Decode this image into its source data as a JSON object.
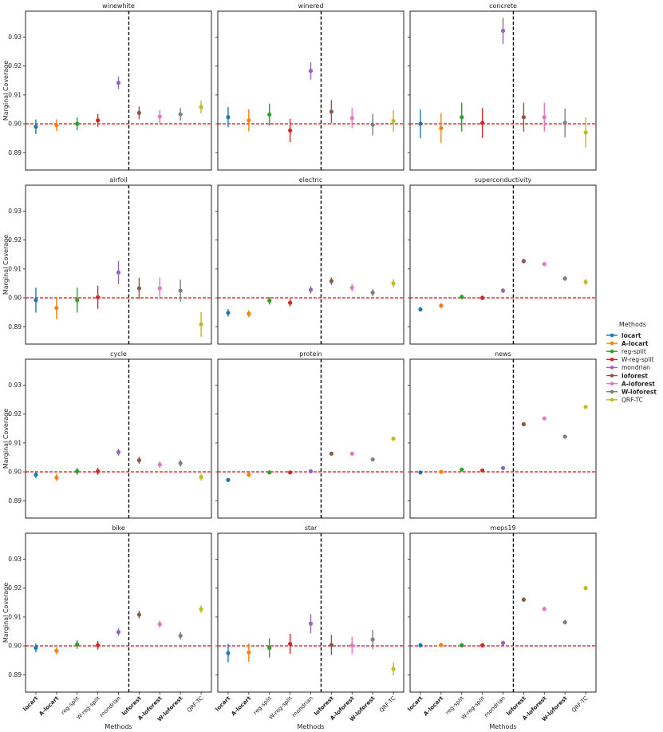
{
  "chart_data": {
    "type": "scatter",
    "subtype": "point-with-error-bars",
    "ylabel": "Marginal Coverage",
    "xlabel": "Methods",
    "ylim": [
      0.884,
      0.939
    ],
    "yticks": [
      0.89,
      0.9,
      0.91,
      0.92,
      0.93
    ],
    "ytick_labels": [
      "0.89",
      "0.90",
      "0.91",
      "0.92",
      "0.93"
    ],
    "reference_line": 0.9,
    "divider_between": [
      "mondrian",
      "loforest"
    ],
    "legend": {
      "title": "Methods",
      "placement": "right"
    },
    "methods": [
      {
        "name": "locart",
        "bold": true,
        "color": "#1f77b4"
      },
      {
        "name": "A-locart",
        "bold": true,
        "color": "#ff7f0e"
      },
      {
        "name": "reg-split",
        "bold": false,
        "color": "#2ca02c"
      },
      {
        "name": "W-reg-split",
        "bold": false,
        "color": "#d62728"
      },
      {
        "name": "mondrian",
        "bold": false,
        "color": "#9467bd"
      },
      {
        "name": "loforest",
        "bold": true,
        "color": "#8c564b"
      },
      {
        "name": "A-loforest",
        "bold": true,
        "color": "#e377c2"
      },
      {
        "name": "W-loforest",
        "bold": true,
        "color": "#7f7f7f"
      },
      {
        "name": "QRF-TC",
        "bold": false,
        "color": "#bcbd22"
      }
    ],
    "panels": [
      {
        "title": "winewhite",
        "means": [
          0.899,
          0.8995,
          0.9,
          0.9012,
          0.9142,
          0.9038,
          0.9025,
          0.9033,
          0.9058
        ],
        "errors": [
          0.0025,
          0.002,
          0.0022,
          0.0022,
          0.0022,
          0.0022,
          0.0022,
          0.0022,
          0.0022
        ]
      },
      {
        "title": "winered",
        "means": [
          0.9023,
          0.9012,
          0.9032,
          0.8977,
          0.9183,
          0.9042,
          0.902,
          0.8997,
          0.901
        ],
        "errors": [
          0.0035,
          0.0038,
          0.0038,
          0.004,
          0.003,
          0.004,
          0.0035,
          0.0037,
          0.0038
        ]
      },
      {
        "title": "concrete",
        "means": [
          0.9,
          0.8985,
          0.9023,
          0.9003,
          0.9322,
          0.9023,
          0.9023,
          0.9003,
          0.897
        ],
        "errors": [
          0.005,
          0.0052,
          0.005,
          0.0052,
          0.0045,
          0.005,
          0.005,
          0.005,
          0.0052
        ]
      },
      {
        "title": "airfoil",
        "means": [
          0.8992,
          0.8965,
          0.8992,
          0.9002,
          0.9088,
          0.9033,
          0.9033,
          0.9025,
          0.8908
        ],
        "errors": [
          0.0043,
          0.0038,
          0.0043,
          0.004,
          0.004,
          0.0037,
          0.0038,
          0.0038,
          0.0043
        ]
      },
      {
        "title": "electric",
        "means": [
          0.8948,
          0.8945,
          0.899,
          0.8983,
          0.9028,
          0.9058,
          0.9035,
          0.9018,
          0.905
        ],
        "errors": [
          0.0013,
          0.0012,
          0.0013,
          0.0013,
          0.0013,
          0.0013,
          0.0013,
          0.0013,
          0.0015
        ]
      },
      {
        "title": "superconductivity",
        "means": [
          0.896,
          0.8973,
          0.9003,
          0.9,
          0.9025,
          0.9127,
          0.9117,
          0.9067,
          0.9055
        ],
        "errors": [
          0.0008,
          0.0008,
          0.0008,
          0.0008,
          0.0008,
          0.0008,
          0.0008,
          0.0008,
          0.001
        ]
      },
      {
        "title": "cycle",
        "means": [
          0.899,
          0.898,
          0.9002,
          0.9002,
          0.9068,
          0.904,
          0.9025,
          0.903,
          0.8982
        ],
        "errors": [
          0.0012,
          0.0012,
          0.0012,
          0.0012,
          0.0012,
          0.0012,
          0.0012,
          0.0012,
          0.0012
        ]
      },
      {
        "title": "protein",
        "means": [
          0.8972,
          0.899,
          0.8998,
          0.8998,
          0.9002,
          0.9063,
          0.9063,
          0.9043,
          0.9115
        ],
        "errors": [
          0.0004,
          0.0004,
          0.0004,
          0.0004,
          0.0004,
          0.0004,
          0.0004,
          0.0004,
          0.0005
        ]
      },
      {
        "title": "news",
        "means": [
          0.8998,
          0.9,
          0.9008,
          0.9005,
          0.9013,
          0.9165,
          0.9185,
          0.9122,
          0.9225
        ],
        "errors": [
          0.0004,
          0.0004,
          0.0004,
          0.0004,
          0.0004,
          0.0004,
          0.0004,
          0.0004,
          0.0004
        ]
      },
      {
        "title": "bike",
        "means": [
          0.8993,
          0.8983,
          0.9005,
          0.9002,
          0.9048,
          0.9108,
          0.9075,
          0.9035,
          0.9127
        ],
        "errors": [
          0.0015,
          0.0012,
          0.0015,
          0.0015,
          0.0013,
          0.0013,
          0.0012,
          0.0013,
          0.0013
        ]
      },
      {
        "title": "star",
        "means": [
          0.8975,
          0.8977,
          0.8993,
          0.9007,
          0.9077,
          0.9003,
          0.9002,
          0.9022,
          0.892
        ],
        "errors": [
          0.0032,
          0.0032,
          0.0033,
          0.0035,
          0.0033,
          0.0035,
          0.003,
          0.0033,
          0.0023
        ]
      },
      {
        "title": "meps19",
        "means": [
          0.9002,
          0.9003,
          0.9002,
          0.9002,
          0.901,
          0.916,
          0.9128,
          0.9082,
          0.92
        ],
        "errors": [
          0.0008,
          0.0008,
          0.0008,
          0.0008,
          0.0008,
          0.0008,
          0.0008,
          0.0008,
          0.0008
        ]
      }
    ]
  }
}
